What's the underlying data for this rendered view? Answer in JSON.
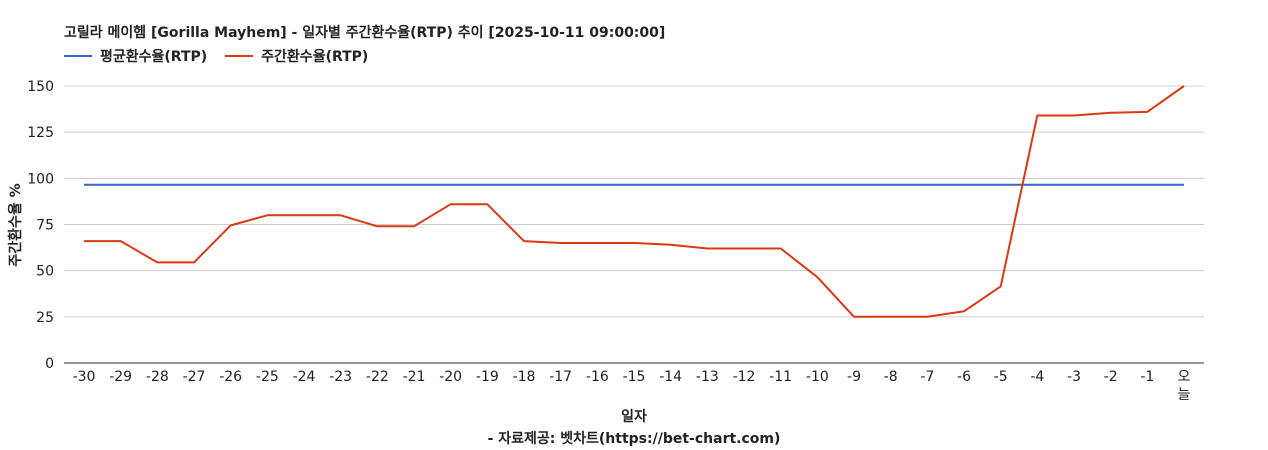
{
  "chart_data": {
    "type": "line",
    "title": "고릴라 메이헴 [Gorilla Mayhem] - 일자별 주간환수율(RTP) 추이 [2025-10-11 09:00:00]",
    "xlabel": "일자",
    "ylabel": "주간환수율 %",
    "source": "- 자료제공: 벳차트(https://bet-chart.com)",
    "x": [
      "-30",
      "-29",
      "-28",
      "-27",
      "-26",
      "-25",
      "-24",
      "-23",
      "-22",
      "-21",
      "-20",
      "-19",
      "-18",
      "-17",
      "-16",
      "-15",
      "-14",
      "-13",
      "-12",
      "-11",
      "-10",
      "-9",
      "-8",
      "-7",
      "-6",
      "-5",
      "-4",
      "-3",
      "-2",
      "-1",
      "오늘"
    ],
    "ylim": [
      0,
      150
    ],
    "yticks": [
      0,
      25,
      50,
      75,
      100,
      125,
      150
    ],
    "grid": true,
    "legend_position": "top-left",
    "series": [
      {
        "name": "평균환수율(RTP)",
        "color": "#3366cc",
        "values": [
          96.5,
          96.5,
          96.5,
          96.5,
          96.5,
          96.5,
          96.5,
          96.5,
          96.5,
          96.5,
          96.5,
          96.5,
          96.5,
          96.5,
          96.5,
          96.5,
          96.5,
          96.5,
          96.5,
          96.5,
          96.5,
          96.5,
          96.5,
          96.5,
          96.5,
          96.5,
          96.5,
          96.5,
          96.5,
          96.5,
          96.5
        ]
      },
      {
        "name": "주간환수율(RTP)",
        "color": "#dc3912",
        "values": [
          66,
          66,
          54.5,
          54.5,
          74.5,
          80,
          80,
          80,
          74,
          74,
          86,
          86,
          66,
          65,
          65,
          65,
          64,
          62,
          62,
          62,
          46.5,
          25,
          25,
          25,
          28,
          41.5,
          134,
          134,
          135.5,
          136,
          150
        ]
      }
    ]
  }
}
